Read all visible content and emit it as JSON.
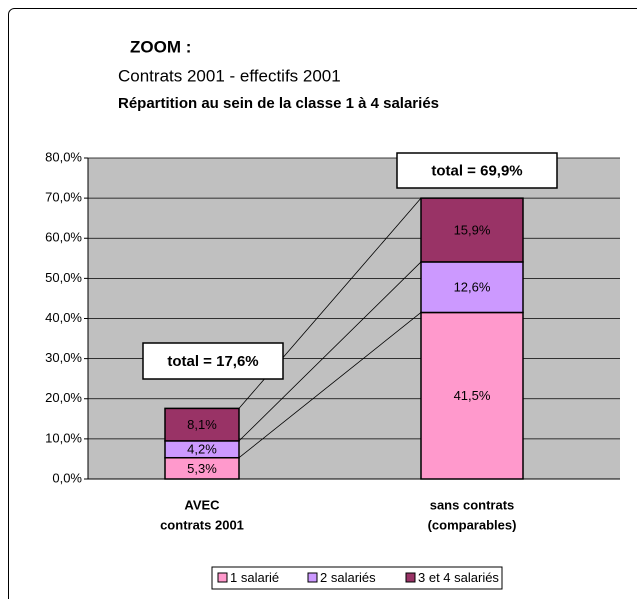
{
  "chart_data": {
    "type": "stacked_bar",
    "title": "ZOOM :",
    "subtitle": "Contrats 2001 - effectifs 2001",
    "subtitle2": "Répartition au sein de la classe 1 à 4 salariés",
    "categories": [
      [
        "AVEC",
        "contrats 2001"
      ],
      [
        "sans contrats",
        "(comparables)"
      ]
    ],
    "series": [
      {
        "name": "1 salarié",
        "color": "#ff99cc",
        "values": [
          5.3,
          41.5
        ],
        "value_labels": [
          "5,3%",
          "41,5%"
        ]
      },
      {
        "name": "2 salariés",
        "color": "#cc99ff",
        "values": [
          4.2,
          12.6
        ],
        "value_labels": [
          "4,2%",
          "12,6%"
        ]
      },
      {
        "name": "3 et 4 salariés",
        "color": "#993366",
        "values": [
          8.1,
          15.9
        ],
        "value_labels": [
          "8,1%",
          "15,9%"
        ]
      }
    ],
    "annotations": [
      "total = 17,6%",
      "total = 69,9%"
    ],
    "ylim": [
      0,
      80
    ],
    "yticks": [
      {
        "value": 0,
        "label": "0,0%"
      },
      {
        "value": 10,
        "label": "10,0%"
      },
      {
        "value": 20,
        "label": "20,0%"
      },
      {
        "value": 30,
        "label": "30,0%"
      },
      {
        "value": 40,
        "label": "40,0%"
      },
      {
        "value": 50,
        "label": "50,0%"
      },
      {
        "value": 60,
        "label": "60,0%"
      },
      {
        "value": 70,
        "label": "70,0%"
      },
      {
        "value": 80,
        "label": "80,0%"
      }
    ],
    "grid": true,
    "legend": "bottom"
  }
}
